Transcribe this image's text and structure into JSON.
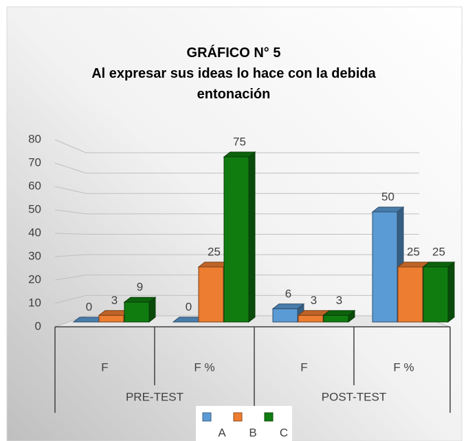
{
  "chart_data": {
    "type": "bar3d",
    "title": "GRÁFICO N° 5",
    "subtitle": "Al expresar sus ideas lo hace con la debida entonación",
    "categories": [
      "F",
      "F %",
      "F",
      "F %"
    ],
    "group_labels": [
      "PRE-TEST",
      "POST-TEST"
    ],
    "series": [
      {
        "name": "A",
        "color": "#5b9bd5",
        "values": [
          0,
          0,
          6,
          50
        ]
      },
      {
        "name": "B",
        "color": "#ed7d31",
        "values": [
          3,
          25,
          3,
          25
        ]
      },
      {
        "name": "C",
        "color": "#107c10",
        "values": [
          9,
          75,
          3,
          25
        ]
      }
    ],
    "ylim": [
      0,
      80
    ],
    "yticks": [
      0,
      10,
      20,
      30,
      40,
      50,
      60,
      70,
      80
    ],
    "grid": true,
    "legend_position": "bottom"
  }
}
